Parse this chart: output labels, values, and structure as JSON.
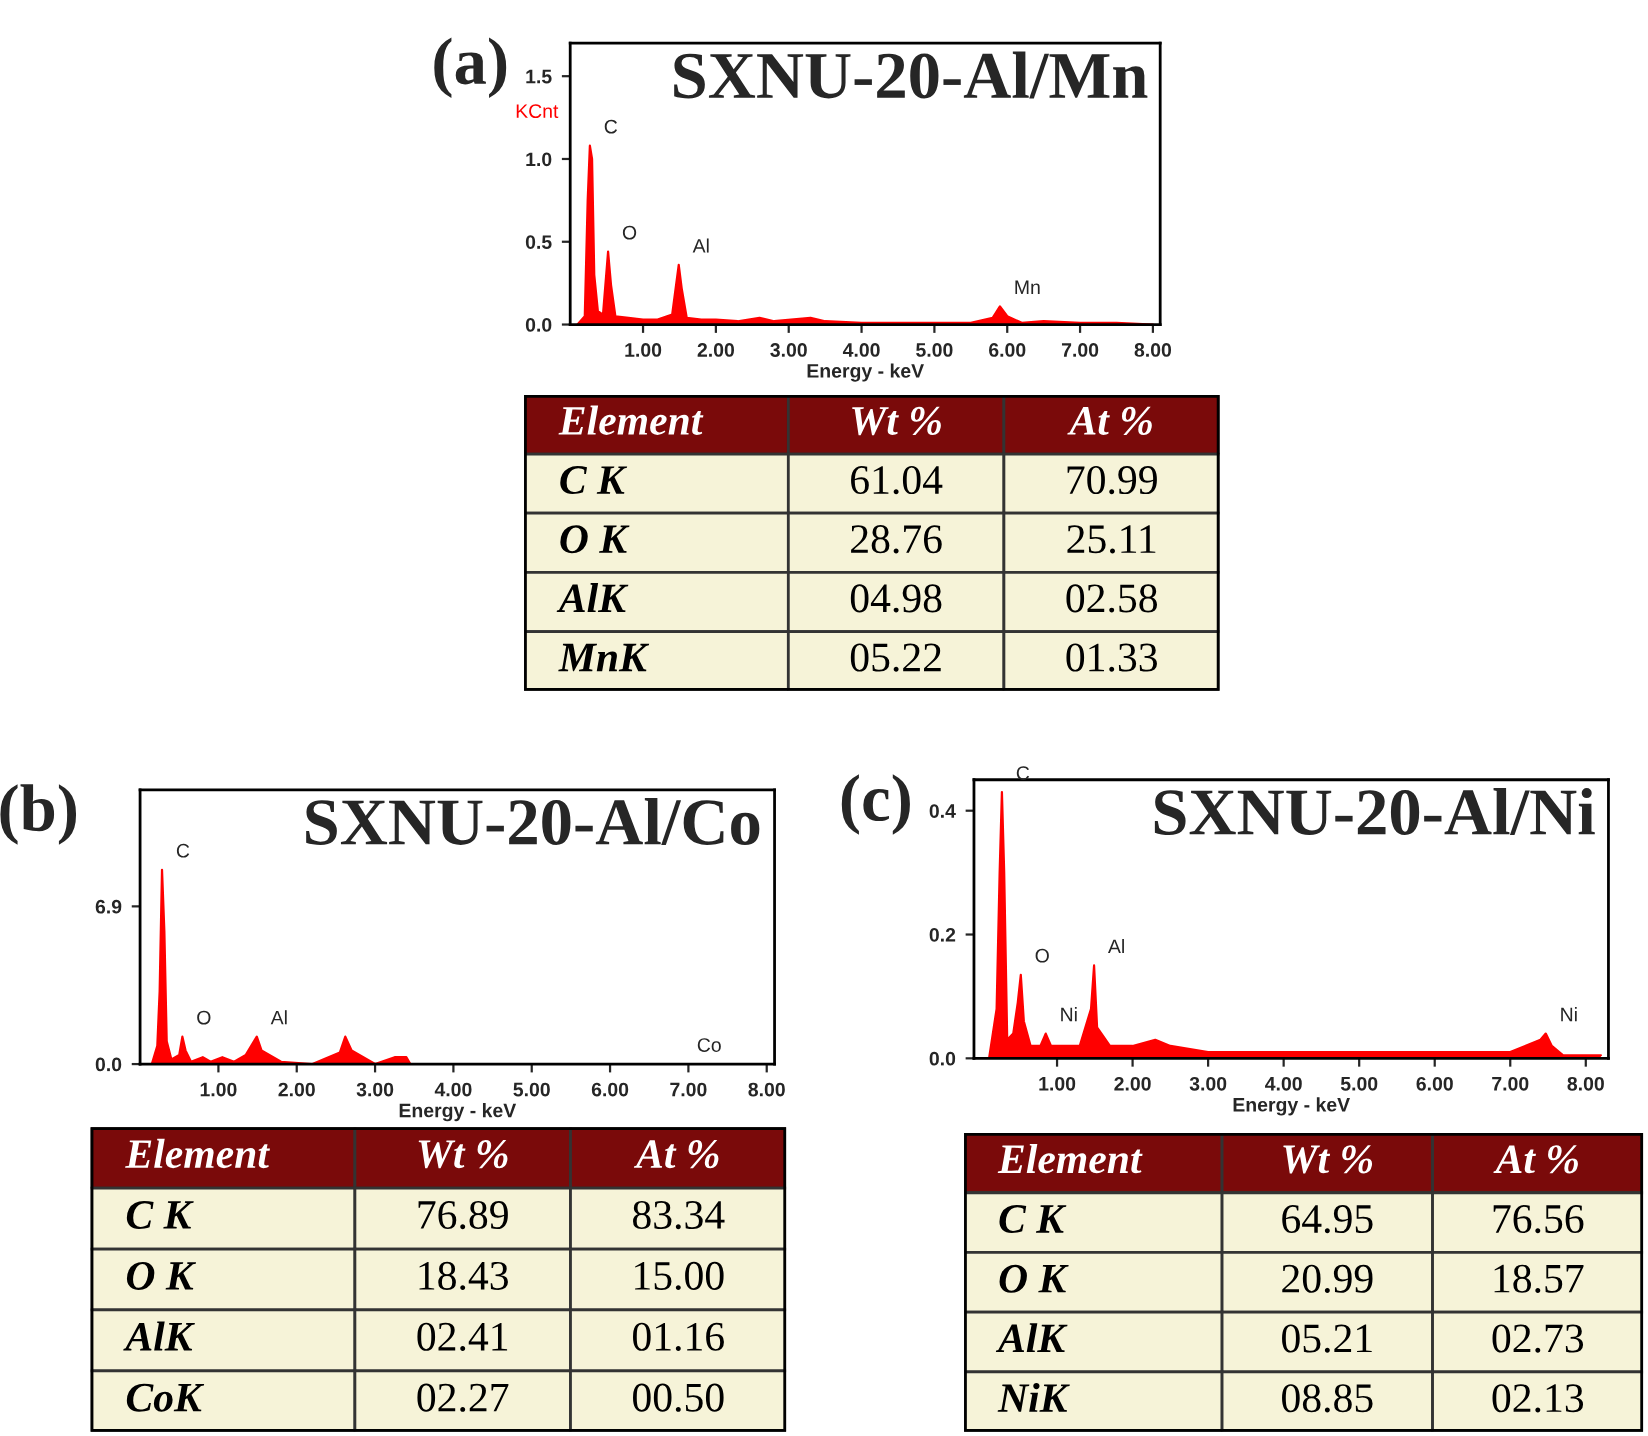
{
  "chart_data": [
    {
      "type": "area",
      "title": "SXNU-20-Al/Mn",
      "xlabel": "Energy - keV",
      "ylabel": "KCnt",
      "xlim": [
        0,
        8.1
      ],
      "ylim": [
        0,
        1.7
      ],
      "xticks": [
        {
          "value": 1,
          "label": "1.00"
        },
        {
          "value": 2,
          "label": "2.00"
        },
        {
          "value": 3,
          "label": "3.00"
        },
        {
          "value": 4,
          "label": "4.00"
        },
        {
          "value": 5,
          "label": "5.00"
        },
        {
          "value": 6,
          "label": "6.00"
        },
        {
          "value": 7,
          "label": "7.00"
        },
        {
          "value": 8,
          "label": "8.00"
        }
      ],
      "yticks": [
        {
          "value": 0,
          "label": "0.0"
        },
        {
          "value": 0.5,
          "label": "0.5"
        },
        {
          "value": 1.0,
          "label": "1.0"
        },
        {
          "value": 1.5,
          "label": "1.5"
        }
      ],
      "series": [
        {
          "color": "#ff0000",
          "x": [
            0.1,
            0.2,
            0.24,
            0.27,
            0.3,
            0.33,
            0.38,
            0.45,
            0.52,
            0.56,
            0.62,
            0.8,
            1.0,
            1.2,
            1.4,
            1.49,
            1.53,
            1.6,
            1.8,
            2.0,
            2.3,
            2.6,
            2.8,
            3.3,
            3.5,
            4.0,
            4.5,
            5.0,
            5.5,
            5.8,
            5.9,
            6.0,
            6.2,
            6.5,
            7.0,
            7.5,
            8.0
          ],
          "values": [
            0,
            0.05,
            0.75,
            1.08,
            1.0,
            0.3,
            0.08,
            0.06,
            0.44,
            0.24,
            0.05,
            0.04,
            0.03,
            0.03,
            0.06,
            0.36,
            0.22,
            0.04,
            0.03,
            0.03,
            0.02,
            0.04,
            0.02,
            0.04,
            0.02,
            0.01,
            0.01,
            0.01,
            0.01,
            0.04,
            0.11,
            0.05,
            0.01,
            0.02,
            0.01,
            0.01,
            0
          ]
        }
      ],
      "annotations": [
        "(a)",
        {
          "text": "C",
          "x": 0.27,
          "y": 1.08
        },
        {
          "text": "O",
          "x": 0.52,
          "y": 0.44
        },
        {
          "text": "Al",
          "x": 1.49,
          "y": 0.36
        },
        {
          "text": "Mn",
          "x": 5.9,
          "y": 0.11
        }
      ],
      "grid": false
    },
    {
      "type": "other",
      "categories": [
        "Element",
        "Wt %",
        "At %"
      ],
      "y_categories": [
        "C K",
        "O K",
        "AlK",
        "MnK"
      ],
      "cell_labels": [
        [
          "61.04",
          "70.99"
        ],
        [
          "28.76",
          "25.11"
        ],
        [
          "04.98",
          "02.58"
        ],
        [
          "05.22",
          "01.33"
        ]
      ]
    },
    {
      "type": "area",
      "title": "SXNU-20-Al/Co",
      "xlabel": "Energy - keV",
      "xlim": [
        0,
        8.1
      ],
      "ylim": [
        0,
        12
      ],
      "xticks": [
        {
          "value": 1,
          "label": "1.00"
        },
        {
          "value": 2,
          "label": "2.00"
        },
        {
          "value": 3,
          "label": "3.00"
        },
        {
          "value": 4,
          "label": "4.00"
        },
        {
          "value": 5,
          "label": "5.00"
        },
        {
          "value": 6,
          "label": "6.00"
        },
        {
          "value": 7,
          "label": "7.00"
        },
        {
          "value": 8,
          "label": "8.00"
        }
      ],
      "yticks": [
        {
          "value": 0,
          "label": "0.0"
        },
        {
          "value": 6.9,
          "label": "6.9"
        }
      ],
      "series": [
        {
          "color": "#ff0000",
          "x": [
            0.15,
            0.22,
            0.25,
            0.28,
            0.31,
            0.34,
            0.4,
            0.5,
            0.54,
            0.58,
            0.65,
            0.8,
            0.9,
            1.05,
            1.2,
            1.35,
            1.49,
            1.55,
            1.7,
            1.8,
            2.2,
            2.55,
            2.62,
            2.7,
            2.85,
            3.0,
            3.25,
            3.4,
            3.45,
            6.93,
            8.0
          ],
          "values": [
            0,
            0.8,
            3.2,
            8.5,
            5.8,
            1.0,
            0.2,
            0.4,
            1.2,
            0.6,
            0.1,
            0.3,
            0.1,
            0.3,
            0.1,
            0.4,
            1.2,
            0.6,
            0.3,
            0.1,
            0,
            0.5,
            1.2,
            0.6,
            0.3,
            0,
            0.3,
            0.3,
            0,
            0,
            0
          ]
        }
      ],
      "annotations": [
        "(b)",
        {
          "text": "C",
          "x": 0.28,
          "y": 8.5
        },
        {
          "text": "O",
          "x": 0.54,
          "y": 1.2
        },
        {
          "text": "Al",
          "x": 1.49,
          "y": 1.2
        },
        {
          "text": "Co",
          "x": 6.93,
          "y": 0
        }
      ],
      "grid": false
    },
    {
      "type": "other",
      "categories": [
        "Element",
        "Wt %",
        "At %"
      ],
      "y_categories": [
        "C K",
        "O K",
        "AlK",
        "CoK"
      ],
      "cell_labels": [
        [
          "76.89",
          "83.34"
        ],
        [
          "18.43",
          "15.00"
        ],
        [
          "02.41",
          "01.16"
        ],
        [
          "02.27",
          "00.50"
        ]
      ]
    },
    {
      "type": "area",
      "title": "SXNU-20-Al/Ni",
      "xlabel": "Energy - keV",
      "xlim": [
        -0.1,
        8.3
      ],
      "ylim": [
        0,
        0.45
      ],
      "xticks": [
        {
          "value": 1,
          "label": "1.00"
        },
        {
          "value": 2,
          "label": "2.00"
        },
        {
          "value": 3,
          "label": "3.00"
        },
        {
          "value": 4,
          "label": "4.00"
        },
        {
          "value": 5,
          "label": "5.00"
        },
        {
          "value": 6,
          "label": "6.00"
        },
        {
          "value": 7,
          "label": "7.00"
        },
        {
          "value": 8,
          "label": "8.00"
        }
      ],
      "yticks": [
        {
          "value": 0,
          "label": "0.0"
        },
        {
          "value": 0.2,
          "label": "0.2"
        },
        {
          "value": 0.4,
          "label": "0.4"
        }
      ],
      "series": [
        {
          "color": "#ff0000",
          "x": [
            0.1,
            0.2,
            0.24,
            0.27,
            0.3,
            0.34,
            0.42,
            0.48,
            0.52,
            0.56,
            0.65,
            0.78,
            0.85,
            0.92,
            1.1,
            1.3,
            1.45,
            1.49,
            1.53,
            1.7,
            2.0,
            2.3,
            2.5,
            3.0,
            4.0,
            5.0,
            6.0,
            7.0,
            7.4,
            7.47,
            7.55,
            7.7,
            8.2
          ],
          "values": [
            0,
            0.08,
            0.3,
            0.43,
            0.3,
            0.03,
            0.04,
            0.09,
            0.135,
            0.06,
            0.02,
            0.02,
            0.04,
            0.02,
            0.02,
            0.02,
            0.08,
            0.15,
            0.05,
            0.02,
            0.02,
            0.03,
            0.02,
            0.01,
            0.01,
            0.01,
            0.01,
            0.01,
            0.03,
            0.04,
            0.02,
            0.005,
            0.005
          ]
        }
      ],
      "annotations": [
        "(c)",
        {
          "text": "C",
          "x": 0.27,
          "y": 0.43
        },
        {
          "text": "O",
          "x": 0.52,
          "y": 0.135
        },
        {
          "text": "Ni",
          "x": 0.85,
          "y": 0.04
        },
        {
          "text": "Al",
          "x": 1.49,
          "y": 0.15
        },
        {
          "text": "Ni",
          "x": 7.47,
          "y": 0.04
        }
      ],
      "grid": false
    },
    {
      "type": "other",
      "categories": [
        "Element",
        "Wt %",
        "At %"
      ],
      "y_categories": [
        "C K",
        "O K",
        "AlK",
        "NiK"
      ],
      "cell_labels": [
        [
          "64.95",
          "76.56"
        ],
        [
          "20.99",
          "18.57"
        ],
        [
          "05.21",
          "02.73"
        ],
        [
          "08.85",
          "02.13"
        ]
      ]
    }
  ]
}
